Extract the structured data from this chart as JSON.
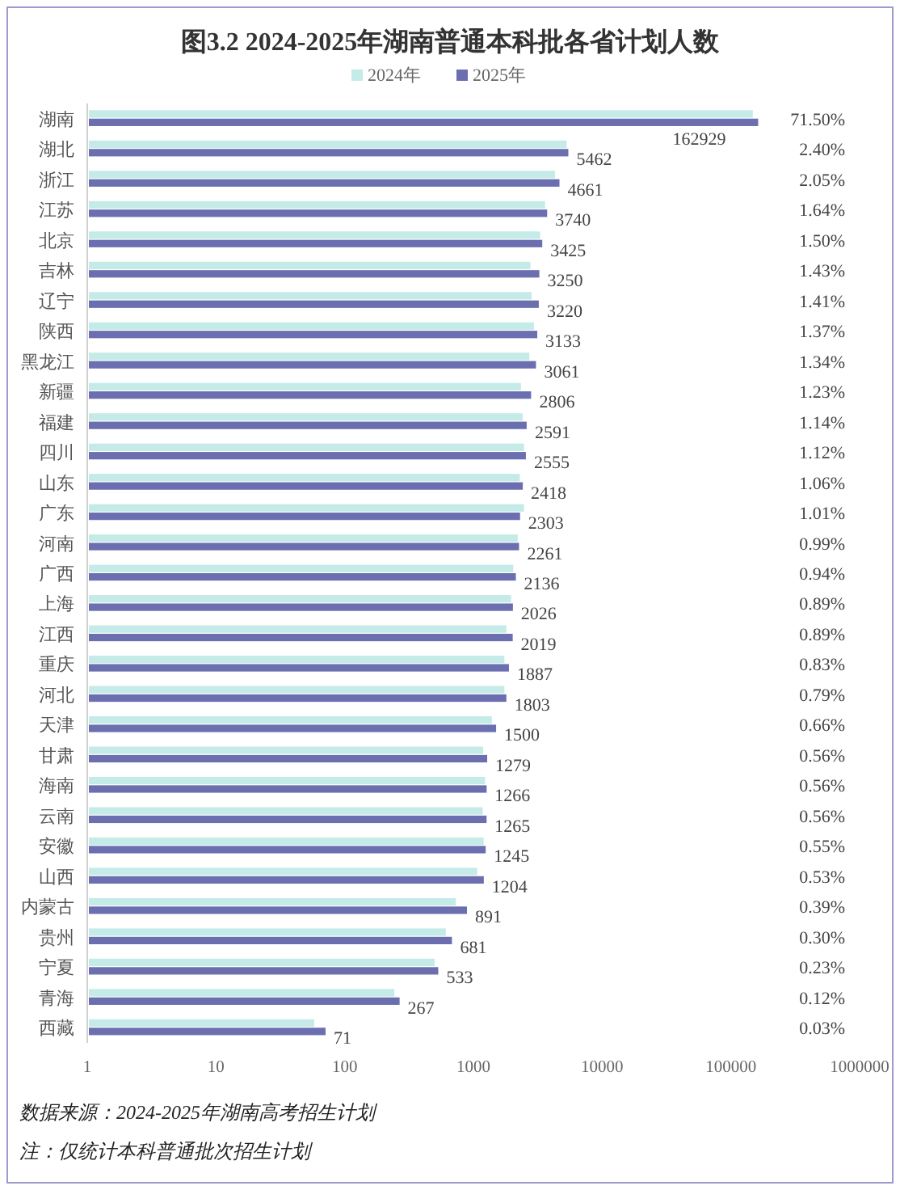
{
  "chart_data": {
    "type": "bar",
    "orientation": "horizontal",
    "log": "x",
    "title": "图3.2  2024-2025年湖南普通本科批各省计划人数",
    "legend": "top",
    "grid": false,
    "categories": [
      "湖南",
      "湖北",
      "浙江",
      "江苏",
      "北京",
      "吉林",
      "辽宁",
      "陕西",
      "黑龙江",
      "新疆",
      "福建",
      "四川",
      "山东",
      "广东",
      "河南",
      "广西",
      "上海",
      "江西",
      "重庆",
      "河北",
      "天津",
      "甘肃",
      "海南",
      "云南",
      "安徽",
      "山西",
      "内蒙古",
      "贵州",
      "宁夏",
      "青海",
      "西藏"
    ],
    "xlim": [
      1,
      1000000
    ],
    "xticks": [
      1,
      10,
      100,
      1000,
      10000,
      100000,
      1000000
    ],
    "series": [
      {
        "name": "2024年",
        "color": "#c4ebe7",
        "values": [
          148000,
          5300,
          4300,
          3600,
          3300,
          2770,
          2830,
          2950,
          2720,
          2340,
          2410,
          2470,
          2290,
          2470,
          2210,
          2040,
          1960,
          1800,
          1740,
          1740,
          1390,
          1190,
          1230,
          1180,
          1200,
          1070,
          730,
          610,
          500,
          243,
          58
        ]
      },
      {
        "name": "2025年",
        "color": "#6b6fb0",
        "values": [
          162929,
          5462,
          4661,
          3740,
          3425,
          3250,
          3220,
          3133,
          3061,
          2806,
          2591,
          2555,
          2418,
          2303,
          2261,
          2136,
          2026,
          2019,
          1887,
          1803,
          1500,
          1279,
          1266,
          1265,
          1245,
          1204,
          891,
          681,
          533,
          267,
          71
        ],
        "value_labels": [
          "162929",
          "5462",
          "4661",
          "3740",
          "3425",
          "3250",
          "3220",
          "3133",
          "3061",
          "2806",
          "2591",
          "2555",
          "2418",
          "2303",
          "2261",
          "2136",
          "2026",
          "2019",
          "1887",
          "1803",
          "1500",
          "1279",
          "1266",
          "1265",
          "1245",
          "1204",
          "891",
          "681",
          "533",
          "267",
          "71"
        ]
      }
    ],
    "annotations": [
      "71.50%",
      "2.40%",
      "2.05%",
      "1.64%",
      "1.50%",
      "1.43%",
      "1.41%",
      "1.37%",
      "1.34%",
      "1.23%",
      "1.14%",
      "1.12%",
      "1.06%",
      "1.01%",
      "0.99%",
      "0.94%",
      "0.89%",
      "0.89%",
      "0.83%",
      "0.79%",
      "0.66%",
      "0.56%",
      "0.56%",
      "0.56%",
      "0.55%",
      "0.53%",
      "0.39%",
      "0.30%",
      "0.23%",
      "0.12%",
      "0.03%",
      "数据来源：2024-2025年湖南高考招生计划",
      "注：仅统计本科普通批次招生计划"
    ]
  }
}
